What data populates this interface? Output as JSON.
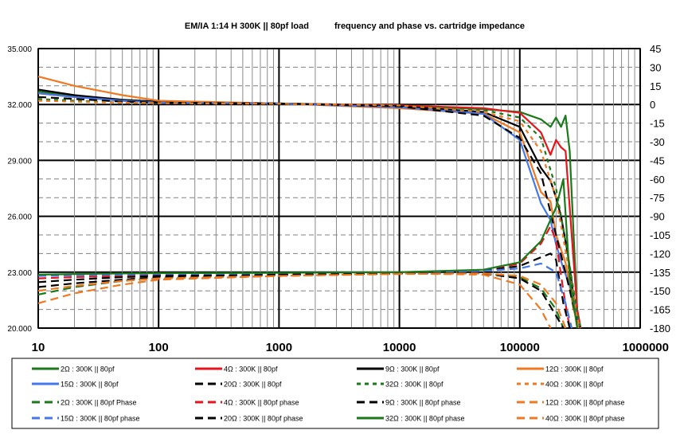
{
  "chart_data": {
    "type": "line",
    "title_left": "EM/IA 1:14 H 300K || 80pf load",
    "title_right": "frequency and phase vs. cartridge impedance",
    "x_scale": "log",
    "x_range": [
      10,
      1000000
    ],
    "x_ticks": [
      "10",
      "100",
      "1000",
      "10000",
      "100000",
      "1000000"
    ],
    "y_left_range": [
      20,
      35
    ],
    "y_left_ticks": [
      "35.000",
      "32.000",
      "29.000",
      "26.000",
      "23.000",
      "20.000"
    ],
    "y_right_range": [
      -180,
      45
    ],
    "y_right_ticks": [
      "45",
      "30",
      "15",
      "0",
      "-15",
      "-30",
      "-45",
      "-60",
      "-75",
      "-90",
      "-105",
      "-120",
      "-135",
      "-150",
      "-165",
      "-180"
    ],
    "grid": true,
    "legend_position": "bottom",
    "series": [
      {
        "name": "2Ω : 300K || 80pf",
        "color": "#1a7a1a",
        "dash": "solid",
        "axis": "left",
        "points": [
          [
            10,
            32.7
          ],
          [
            20,
            32.45
          ],
          [
            50,
            32.25
          ],
          [
            100,
            32.15
          ],
          [
            1000,
            32.05
          ],
          [
            10000,
            31.95
          ],
          [
            50000,
            31.75
          ],
          [
            100000,
            31.6
          ],
          [
            150000,
            31.2
          ],
          [
            180000,
            30.8
          ],
          [
            200000,
            31.3
          ],
          [
            220000,
            30.8
          ],
          [
            240000,
            31.4
          ],
          [
            260000,
            29.5
          ],
          [
            280000,
            25
          ],
          [
            300000,
            21
          ],
          [
            320000,
            20
          ]
        ]
      },
      {
        "name": "4Ω : 300K || 80pf",
        "color": "#e8141c",
        "dash": "solid",
        "axis": "left",
        "points": [
          [
            10,
            32.6
          ],
          [
            20,
            32.4
          ],
          [
            50,
            32.2
          ],
          [
            100,
            32.12
          ],
          [
            1000,
            32.05
          ],
          [
            10000,
            31.95
          ],
          [
            50000,
            31.8
          ],
          [
            100000,
            31.55
          ],
          [
            150000,
            30.5
          ],
          [
            180000,
            29.3
          ],
          [
            200000,
            30.1
          ],
          [
            220000,
            29.7
          ],
          [
            240000,
            29.5
          ],
          [
            270000,
            25
          ],
          [
            300000,
            21
          ],
          [
            320000,
            20
          ]
        ]
      },
      {
        "name": "9Ω : 300K || 80pf",
        "color": "#000000",
        "dash": "solid",
        "axis": "left",
        "points": [
          [
            10,
            32.8
          ],
          [
            20,
            32.5
          ],
          [
            50,
            32.25
          ],
          [
            100,
            32.15
          ],
          [
            1000,
            32.05
          ],
          [
            10000,
            31.9
          ],
          [
            50000,
            31.6
          ],
          [
            100000,
            30.8
          ],
          [
            150000,
            28.6
          ],
          [
            180000,
            27.9
          ],
          [
            200000,
            27
          ],
          [
            220000,
            26
          ],
          [
            250000,
            24
          ],
          [
            290000,
            21
          ],
          [
            310000,
            20
          ]
        ]
      },
      {
        "name": "12Ω : 300K || 80pf",
        "color": "#f07820",
        "dash": "solid",
        "axis": "left",
        "points": [
          [
            10,
            33.5
          ],
          [
            20,
            33
          ],
          [
            50,
            32.5
          ],
          [
            100,
            32.2
          ],
          [
            1000,
            32.05
          ],
          [
            10000,
            31.8
          ],
          [
            50000,
            31.5
          ],
          [
            100000,
            30.5
          ],
          [
            150000,
            27.3
          ],
          [
            180000,
            26.8
          ],
          [
            200000,
            25
          ],
          [
            240000,
            23.5
          ],
          [
            280000,
            21
          ],
          [
            310000,
            20
          ]
        ]
      },
      {
        "name": "15Ω : 300K || 80pf",
        "color": "#4477e8",
        "dash": "solid",
        "axis": "left",
        "points": [
          [
            10,
            32.6
          ],
          [
            20,
            32.4
          ],
          [
            50,
            32.2
          ],
          [
            100,
            32.1
          ],
          [
            1000,
            32.05
          ],
          [
            10000,
            31.85
          ],
          [
            50000,
            31.5
          ],
          [
            100000,
            30.1
          ],
          [
            150000,
            26.7
          ],
          [
            180000,
            25.8
          ],
          [
            200000,
            24.5
          ],
          [
            230000,
            23.2
          ],
          [
            270000,
            22
          ],
          [
            300000,
            20.5
          ],
          [
            320000,
            20
          ]
        ]
      },
      {
        "name": "20Ω : 300K || 80pf",
        "color": "#000000",
        "dash": "dash",
        "axis": "left",
        "points": [
          [
            10,
            32.4
          ],
          [
            20,
            32.3
          ],
          [
            50,
            32.15
          ],
          [
            100,
            32.1
          ],
          [
            1000,
            32.05
          ],
          [
            10000,
            31.9
          ],
          [
            50000,
            31.4
          ],
          [
            100000,
            30.2
          ],
          [
            150000,
            28.3
          ],
          [
            200000,
            25
          ],
          [
            250000,
            22.5
          ],
          [
            300000,
            20.3
          ],
          [
            320000,
            20
          ]
        ]
      },
      {
        "name": "32Ω : 300K || 80pf",
        "color": "#1a7a1a",
        "dash": "dot",
        "axis": "left",
        "points": [
          [
            10,
            32.3
          ],
          [
            20,
            32.2
          ],
          [
            50,
            32.1
          ],
          [
            100,
            32.08
          ],
          [
            1000,
            32.04
          ],
          [
            10000,
            31.95
          ],
          [
            50000,
            31.7
          ],
          [
            100000,
            31.3
          ],
          [
            150000,
            30.2
          ],
          [
            200000,
            27.5
          ],
          [
            250000,
            24
          ],
          [
            300000,
            20.8
          ],
          [
            320000,
            20
          ]
        ]
      },
      {
        "name": "40Ω : 300K || 80pf",
        "color": "#f07820",
        "dash": "dot",
        "axis": "left",
        "points": [
          [
            10,
            32.2
          ],
          [
            20,
            32.15
          ],
          [
            50,
            32.1
          ],
          [
            100,
            32.07
          ],
          [
            1000,
            32.04
          ],
          [
            10000,
            31.95
          ],
          [
            50000,
            31.6
          ],
          [
            100000,
            31.1
          ],
          [
            150000,
            29.5
          ],
          [
            200000,
            27
          ],
          [
            250000,
            23.5
          ],
          [
            300000,
            20.5
          ],
          [
            320000,
            20
          ]
        ]
      },
      {
        "name": "2Ω : 300K || 80pf Phase",
        "color": "#1a7a1a",
        "dash": "dash",
        "axis": "right",
        "points": [
          [
            10,
            -153
          ],
          [
            20,
            -147
          ],
          [
            50,
            -142
          ],
          [
            100,
            -140
          ],
          [
            1000,
            -138
          ],
          [
            10000,
            -136
          ],
          [
            50000,
            -136
          ],
          [
            100000,
            -139
          ],
          [
            150000,
            -148
          ],
          [
            200000,
            -165
          ],
          [
            230000,
            -180
          ]
        ]
      },
      {
        "name": "4Ω : 300K || 80pf phase",
        "color": "#e8141c",
        "dash": "dash",
        "axis": "right",
        "points": [
          [
            10,
            -140
          ],
          [
            20,
            -139
          ],
          [
            50,
            -138
          ],
          [
            100,
            -137.5
          ],
          [
            1000,
            -137
          ],
          [
            10000,
            -136
          ],
          [
            50000,
            -134
          ],
          [
            100000,
            -128
          ],
          [
            150000,
            -112
          ],
          [
            180000,
            -98
          ],
          [
            200000,
            -110
          ],
          [
            230000,
            -150
          ],
          [
            260000,
            -180
          ]
        ]
      },
      {
        "name": "9Ω : 300K || 80pf phase",
        "color": "#000000",
        "dash": "dash",
        "axis": "right",
        "points": [
          [
            10,
            -143
          ],
          [
            20,
            -141
          ],
          [
            50,
            -139
          ],
          [
            100,
            -138
          ],
          [
            1000,
            -137
          ],
          [
            10000,
            -136
          ],
          [
            50000,
            -134
          ],
          [
            100000,
            -130
          ],
          [
            150000,
            -123
          ],
          [
            180000,
            -120
          ],
          [
            200000,
            -125
          ],
          [
            230000,
            -160
          ],
          [
            260000,
            -180
          ]
        ]
      },
      {
        "name": "12Ω : 300K || 80pf phase",
        "color": "#f07820",
        "dash": "dash",
        "axis": "right",
        "points": [
          [
            10,
            -160
          ],
          [
            20,
            -152
          ],
          [
            50,
            -145
          ],
          [
            100,
            -141
          ],
          [
            1000,
            -138
          ],
          [
            10000,
            -136
          ],
          [
            50000,
            -137
          ],
          [
            100000,
            -145
          ],
          [
            150000,
            -165
          ],
          [
            180000,
            -180
          ]
        ]
      },
      {
        "name": "15Ω : 300K || 80pf phase",
        "color": "#4477e8",
        "dash": "dash",
        "axis": "right",
        "points": [
          [
            10,
            -138
          ],
          [
            20,
            -137.5
          ],
          [
            50,
            -137
          ],
          [
            100,
            -136.5
          ],
          [
            1000,
            -136
          ],
          [
            10000,
            -135.5
          ],
          [
            50000,
            -134
          ],
          [
            100000,
            -132
          ],
          [
            150000,
            -128
          ],
          [
            200000,
            -135
          ],
          [
            240000,
            -160
          ],
          [
            270000,
            -180
          ]
        ]
      },
      {
        "name": "20Ω : 300K || 80pf phase",
        "color": "#000000",
        "dash": "dash",
        "axis": "right",
        "points": [
          [
            10,
            -147
          ],
          [
            20,
            -144
          ],
          [
            50,
            -141
          ],
          [
            100,
            -139
          ],
          [
            1000,
            -137
          ],
          [
            10000,
            -136
          ],
          [
            50000,
            -136
          ],
          [
            100000,
            -140
          ],
          [
            150000,
            -150
          ],
          [
            200000,
            -170
          ],
          [
            230000,
            -180
          ]
        ]
      },
      {
        "name": "32Ω : 300K || 80pf phase",
        "color": "#1a7a1a",
        "dash": "solid",
        "axis": "right",
        "points": [
          [
            10,
            -137
          ],
          [
            20,
            -136.5
          ],
          [
            50,
            -136
          ],
          [
            100,
            -135.8
          ],
          [
            1000,
            -135.5
          ],
          [
            10000,
            -135
          ],
          [
            50000,
            -133
          ],
          [
            100000,
            -127
          ],
          [
            150000,
            -110
          ],
          [
            200000,
            -83
          ],
          [
            230000,
            -60
          ],
          [
            260000,
            -140
          ],
          [
            300000,
            -180
          ]
        ]
      },
      {
        "name": "40Ω : 300K || 80pf phase",
        "color": "#f07820",
        "dash": "dash",
        "axis": "right",
        "points": [
          [
            10,
            -150
          ],
          [
            20,
            -146
          ],
          [
            50,
            -142
          ],
          [
            100,
            -140
          ],
          [
            1000,
            -138
          ],
          [
            10000,
            -136.5
          ],
          [
            50000,
            -136
          ],
          [
            100000,
            -138
          ],
          [
            150000,
            -145
          ],
          [
            200000,
            -160
          ],
          [
            240000,
            -180
          ]
        ]
      }
    ]
  }
}
